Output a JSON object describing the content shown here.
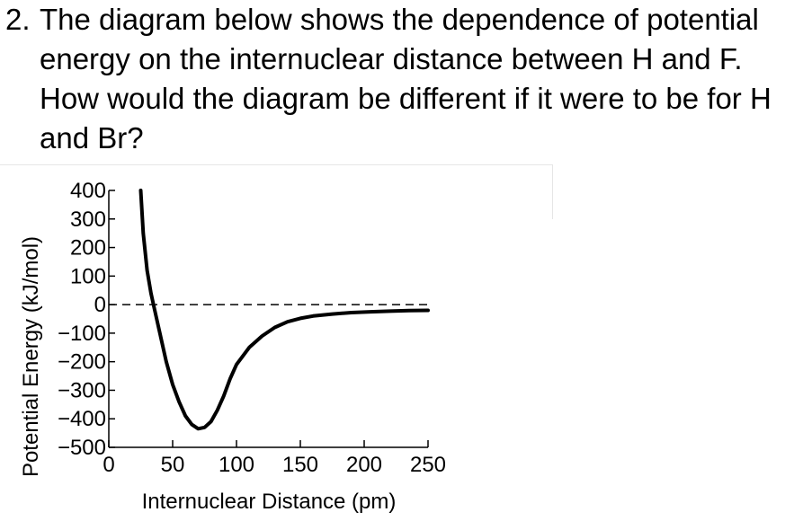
{
  "question": {
    "number": "2.",
    "lines": [
      "The diagram below shows the dependence of potential",
      "energy on the internuclear distance between H and F.",
      "How would the diagram be different if it were to be for H",
      "and Br?"
    ]
  },
  "chart_data": {
    "type": "line",
    "xlabel": "Internuclear Distance (pm)",
    "ylabel": "Potential Energy (kJ/mol)",
    "xlim": [
      0,
      250
    ],
    "ylim": [
      -500,
      400
    ],
    "x_ticks": [
      0,
      50,
      100,
      150,
      200,
      250
    ],
    "x_tick_labels": [
      "0",
      "50",
      "100",
      "150",
      "200",
      "250"
    ],
    "y_ticks": [
      400,
      300,
      200,
      100,
      0,
      -100,
      -200,
      -300,
      -400,
      -500
    ],
    "y_tick_labels": [
      "400",
      "300",
      "200",
      "100",
      "0",
      "−100",
      "−200",
      "−300",
      "−400",
      "−500"
    ],
    "reference_line": {
      "y": 0,
      "style": "dashed"
    },
    "series": [
      {
        "x": [
          25,
          27,
          30,
          33,
          36,
          40,
          45,
          50,
          55,
          60,
          65,
          70,
          75,
          80,
          85,
          90,
          95,
          100,
          110,
          120,
          130,
          140,
          150,
          160,
          175,
          190,
          205,
          220,
          235,
          250
        ],
        "y": [
          400,
          250,
          120,
          40,
          -20,
          -100,
          -200,
          -280,
          -340,
          -390,
          -420,
          -435,
          -430,
          -410,
          -370,
          -320,
          -260,
          -210,
          -150,
          -110,
          -80,
          -60,
          -48,
          -40,
          -33,
          -28,
          -25,
          -23,
          -21,
          -20
        ]
      }
    ],
    "colors": {
      "line": "#000000",
      "reference": "#000000"
    },
    "grid": false
  }
}
